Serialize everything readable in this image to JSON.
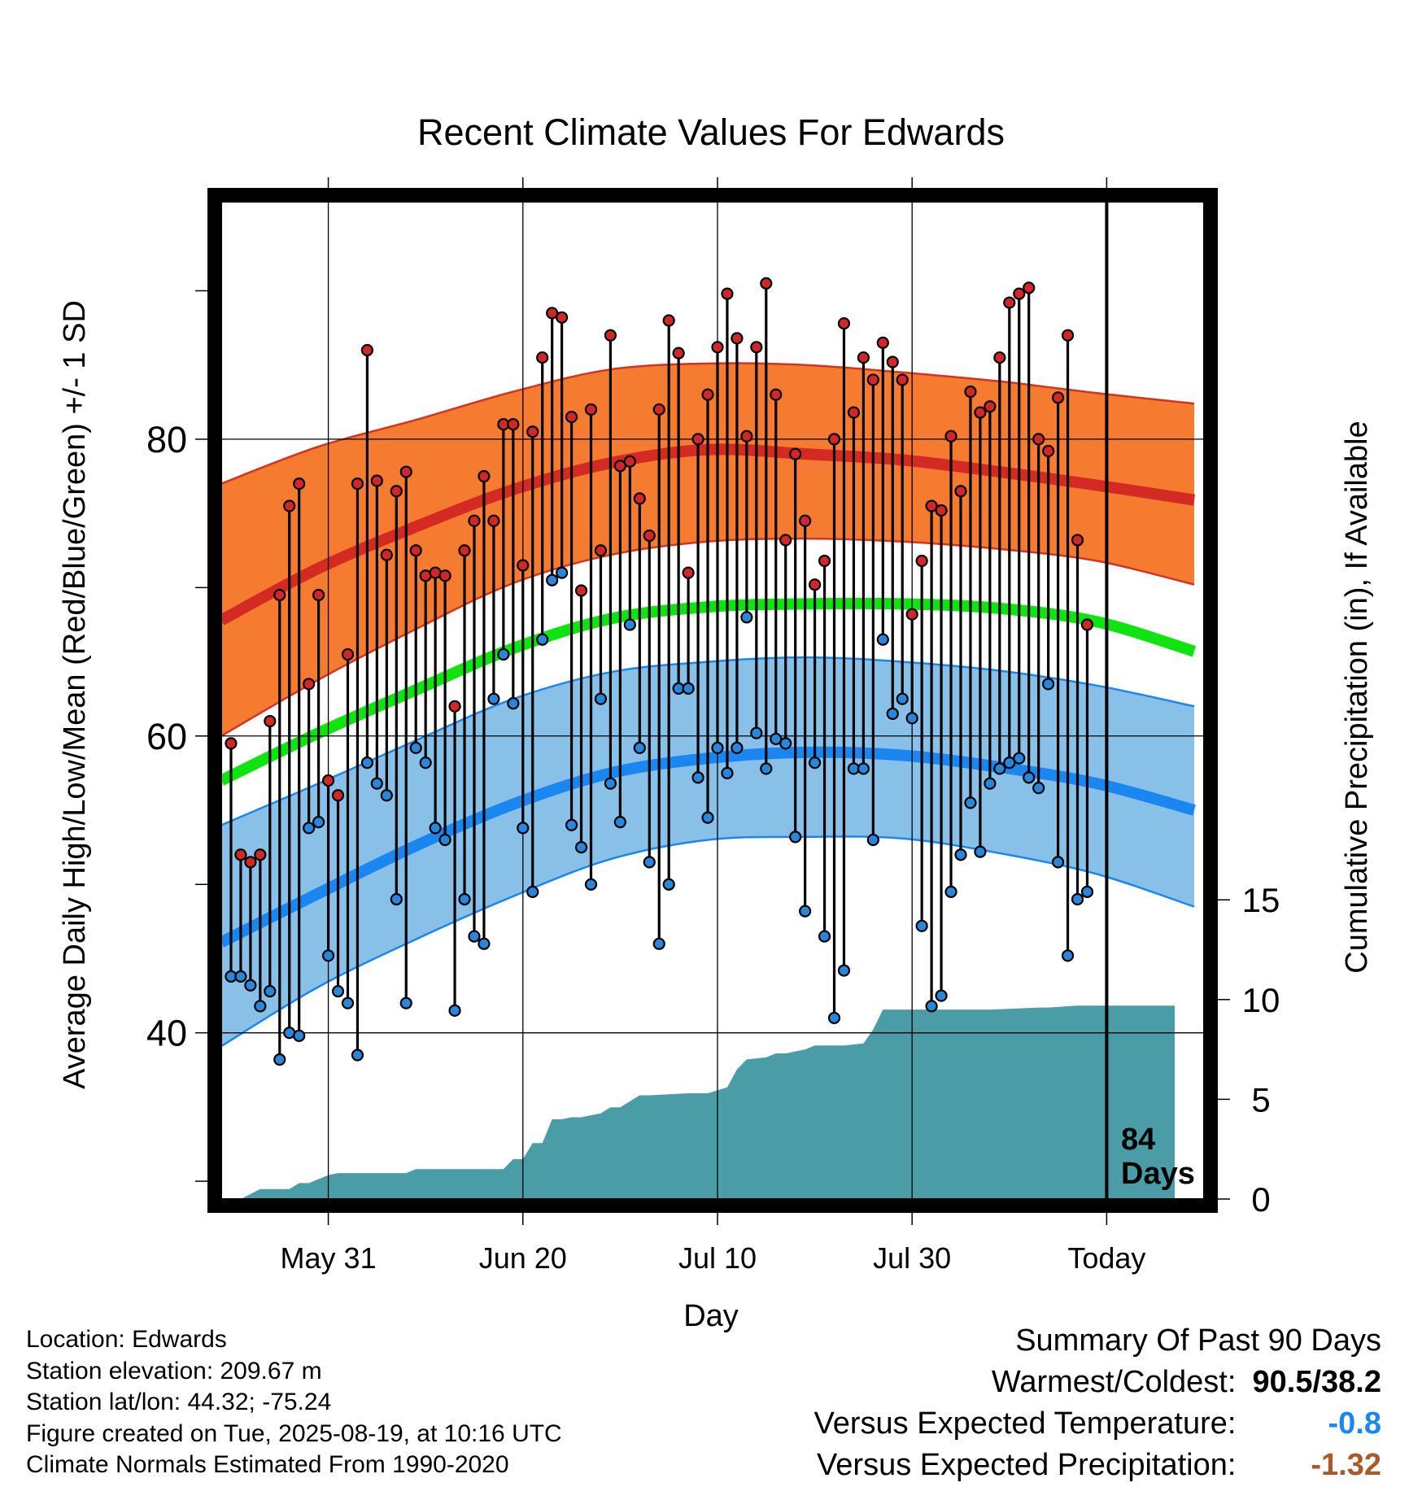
{
  "chart_data": {
    "type": "line",
    "title": "Recent Climate Values For Edwards",
    "xlabel": "Day",
    "ylabel": "Average Daily High/Low/Mean (Red/Blue/Green) +/- 1 SD",
    "y2label": "Cumulative Precipitation (in), If Available",
    "x_ticks": [
      "May 31",
      "Jun 20",
      "Jul 10",
      "Jul 30",
      "Today"
    ],
    "x_tick_day_index": [
      11,
      31,
      51,
      71,
      91
    ],
    "y_ticks": [
      40,
      60,
      80
    ],
    "y_minor_ticks": [
      30,
      50,
      70,
      90
    ],
    "ylim": [
      28.8,
      96.0
    ],
    "y2_ticks": [
      0,
      5,
      10,
      15
    ],
    "y2lim": [
      0,
      50
    ],
    "xlim_days": [
      0,
      101
    ],
    "grid": true,
    "today_marker": {
      "day_index": 91,
      "label_line1": "84",
      "label_line2": "Days"
    },
    "colors": {
      "high_band": "#f47b30",
      "high_band_edge": "#d43322",
      "high_mean": "#d42a24",
      "mean": "#10e410",
      "low_band": "#88c0e8",
      "low_band_edge": "#1a86f0",
      "low_mean": "#1a86f0",
      "precip": "#4a9ca6",
      "high_marker": "#d02828",
      "low_marker": "#2a86d8"
    },
    "normals": {
      "days": [
        0,
        10,
        20,
        30,
        40,
        50,
        60,
        70,
        80,
        90,
        100
      ],
      "high_mean": [
        67.8,
        71.3,
        74.1,
        76.6,
        78.4,
        79.3,
        79.0,
        78.6,
        77.8,
        76.9,
        75.9
      ],
      "high_sd_upper": [
        77.0,
        79.5,
        81.3,
        83.2,
        84.7,
        85.1,
        85.0,
        84.5,
        83.9,
        83.1,
        82.4
      ],
      "high_sd_lower": [
        60.0,
        63.8,
        67.2,
        70.3,
        72.2,
        73.1,
        73.3,
        73.1,
        72.6,
        71.8,
        70.2
      ],
      "mean": [
        57.0,
        60.2,
        63.1,
        65.9,
        67.9,
        68.7,
        68.9,
        68.9,
        68.6,
        67.7,
        65.7
      ],
      "low_mean": [
        46.1,
        49.4,
        52.6,
        55.4,
        57.5,
        58.5,
        58.9,
        58.7,
        57.9,
        56.8,
        55.0
      ],
      "low_sd_upper": [
        54.0,
        56.8,
        59.7,
        62.5,
        64.3,
        65.0,
        65.3,
        65.0,
        64.4,
        63.4,
        62.0
      ],
      "low_sd_lower": [
        39.1,
        43.1,
        46.3,
        49.2,
        51.7,
        53.0,
        53.2,
        53.1,
        52.1,
        50.7,
        48.5
      ]
    },
    "series": [
      {
        "name": "High",
        "values": [
          59.5,
          52.0,
          51.5,
          52.0,
          61.0,
          69.5,
          75.5,
          77.0,
          63.5,
          69.5,
          57.0,
          56.0,
          65.5,
          77.0,
          86.0,
          77.2,
          72.2,
          76.5,
          77.8,
          72.5,
          70.8,
          71.0,
          70.8,
          62.0,
          72.5,
          74.5,
          77.5,
          74.5,
          81.0,
          81.0,
          71.5,
          80.5,
          85.5,
          88.5,
          88.2,
          81.5,
          69.8,
          82.0,
          72.5,
          87.0,
          78.2,
          78.5,
          76.0,
          73.5,
          82.0,
          88.0,
          85.8,
          71.0,
          80.0,
          83.0,
          86.2,
          89.8,
          86.8,
          80.2,
          86.2,
          90.5,
          83.0,
          73.2,
          79.0,
          74.5,
          70.2,
          71.8,
          80.0,
          87.8,
          81.8,
          85.5,
          84.0,
          86.5,
          85.2,
          84.0,
          68.2,
          71.8,
          75.5,
          75.2,
          80.2,
          76.5,
          83.2,
          81.8,
          82.2,
          85.5,
          89.2,
          89.8,
          90.2,
          80.0,
          79.2,
          82.8,
          87.0,
          73.2,
          67.5
        ]
      },
      {
        "name": "Low",
        "values": [
          43.8,
          43.8,
          43.2,
          41.8,
          42.8,
          38.2,
          40.0,
          39.8,
          53.8,
          54.2,
          45.2,
          42.8,
          42.0,
          38.5,
          58.2,
          56.8,
          56.0,
          49.0,
          42.0,
          59.2,
          58.2,
          53.8,
          53.0,
          41.5,
          49.0,
          46.5,
          46.0,
          62.5,
          65.5,
          62.2,
          53.8,
          49.5,
          66.5,
          70.5,
          71.0,
          54.0,
          52.5,
          50.0,
          62.5,
          56.8,
          54.2,
          67.5,
          59.2,
          51.5,
          46.0,
          50.0,
          63.2,
          63.2,
          57.2,
          54.5,
          59.2,
          57.5,
          59.2,
          68.0,
          60.2,
          57.8,
          59.8,
          59.5,
          53.2,
          48.2,
          58.2,
          46.5,
          41.0,
          44.2,
          57.8,
          57.8,
          53.0,
          66.5,
          61.5,
          62.5,
          61.2,
          47.2,
          41.8,
          42.5,
          49.5,
          52.0,
          55.5,
          52.2,
          56.8,
          57.8,
          58.2,
          58.5,
          57.2,
          56.5,
          63.5,
          51.5,
          45.2,
          49.0,
          49.5,
          49.5
        ]
      },
      {
        "name": "Cumulative Precipitation",
        "x": [
          0,
          2,
          4,
          7,
          8,
          9,
          11,
          12,
          19,
          20,
          29,
          30,
          31,
          32,
          33,
          34,
          35,
          36,
          37,
          39,
          40,
          41,
          43,
          44,
          48,
          50,
          52,
          53,
          54,
          56,
          57,
          58,
          60,
          61,
          62,
          64,
          66,
          67,
          68,
          69,
          70,
          72,
          78,
          79,
          84,
          85,
          88,
          90,
          98
        ],
        "values": [
          0.0,
          0.0,
          0.5,
          0.5,
          0.8,
          0.8,
          1.2,
          1.3,
          1.3,
          1.5,
          1.5,
          2.0,
          2.0,
          2.8,
          2.8,
          4.0,
          4.0,
          4.1,
          4.1,
          4.3,
          4.6,
          4.6,
          5.2,
          5.2,
          5.3,
          5.3,
          5.6,
          6.5,
          7.0,
          7.1,
          7.3,
          7.3,
          7.5,
          7.7,
          7.7,
          7.7,
          7.8,
          8.5,
          9.5,
          9.5,
          9.5,
          9.5,
          9.5,
          9.5,
          9.6,
          9.6,
          9.7,
          9.7,
          9.7
        ]
      }
    ]
  },
  "station": {
    "location": "Location: Edwards",
    "elevation": "Station elevation: 209.67 m",
    "latlon": "Station lat/lon: 44.32; -75.24",
    "created": "Figure created on Tue, 2025-08-19, at 10:16 UTC",
    "normals": "Climate Normals Estimated From 1990-2020"
  },
  "summary": {
    "heading": "Summary Of Past 90 Days",
    "warmest_label": "Warmest/Coldest:",
    "warmest_value": "90.5/38.2",
    "temp_label": "Versus Expected Temperature:",
    "temp_value": "-0.8",
    "temp_color": "#1a86f0",
    "precip_label": "Versus Expected Precipitation:",
    "precip_value": "-1.32",
    "precip_color": "#a85a2a"
  }
}
